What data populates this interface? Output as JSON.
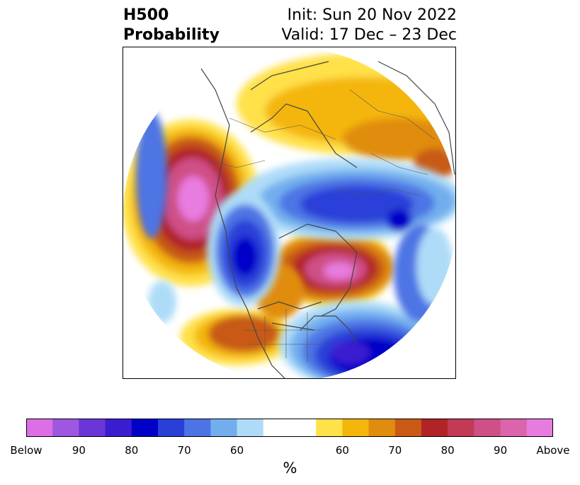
{
  "header": {
    "left_line1": "H500",
    "left_line2": "Probability",
    "right_line1": "Init: Sun 20 Nov 2022",
    "right_line2": "Valid: 17 Dec – 23 Dec"
  },
  "colorbar": {
    "colors": [
      "#dd6fe6",
      "#9e58e0",
      "#6a36d8",
      "#3a1dd0",
      "#0000c8",
      "#2a3fd8",
      "#4d74e4",
      "#72aeee",
      "#aedcf8",
      "#ffffff",
      "#ffe14a",
      "#f4b60b",
      "#e08c0f",
      "#c85a16",
      "#b02428",
      "#c23a56",
      "#cf5086",
      "#dc64ad",
      "#e87be0"
    ],
    "tick_labels": [
      "Below",
      "90",
      "80",
      "70",
      "60",
      "60",
      "70",
      "80",
      "90",
      "Above"
    ],
    "unit_label": "%"
  },
  "map": {
    "projection": "polar-stereographic",
    "features": [
      "coastlines",
      "country-borders",
      "state-borders"
    ]
  }
}
